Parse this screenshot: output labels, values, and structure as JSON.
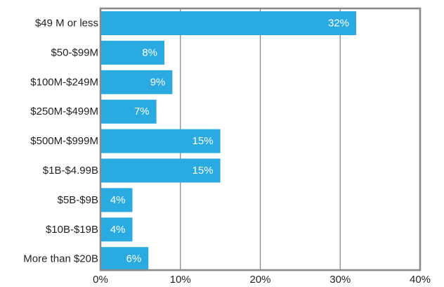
{
  "chart_data": {
    "type": "bar",
    "orientation": "horizontal",
    "categories": [
      "$49 M or less",
      "$50-$99M",
      "$100M-$249M",
      "$250M-$499M",
      "$500M-$999M",
      "$1B-$4.99B",
      "$5B-$9B",
      "$10B-$19B",
      "More than $20B"
    ],
    "values": [
      32,
      8,
      9,
      7,
      15,
      15,
      4,
      4,
      6
    ],
    "value_labels": [
      "32%",
      "8%",
      "9%",
      "7%",
      "15%",
      "15%",
      "4%",
      "4%",
      "6%"
    ],
    "xlim": [
      0,
      40
    ],
    "xticks": [
      0,
      10,
      20,
      30,
      40
    ],
    "xtick_labels": [
      "0%",
      "10%",
      "20%",
      "30%",
      "40%"
    ],
    "grid": true,
    "colors": {
      "bar": "#29abe2",
      "grid": "#8a8a8a",
      "text": "#231f20",
      "value_text": "#ffffff"
    }
  }
}
